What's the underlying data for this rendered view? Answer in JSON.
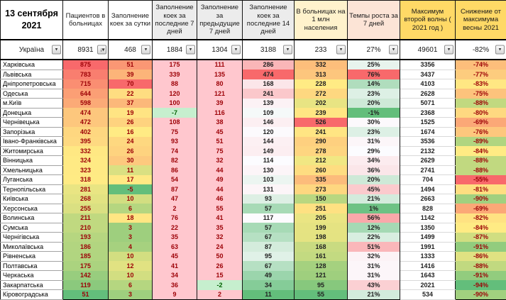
{
  "sheet": {
    "date_title": "13 сентября 2021",
    "totals_region": "Україна"
  },
  "icons": {
    "dropdown": "▾",
    "sort_descending": "↓"
  },
  "colors": {
    "scale_red": "#F8696B",
    "scale_yellow": "#FFEB84",
    "scale_green": "#63BE7B",
    "scale_white": "#FCFCFF",
    "pink_fill": "#FFC7CE",
    "pink_text": "#9C0006",
    "green_fill": "#C6EFCE",
    "green_text": "#006100",
    "header_gray": "#ECECEC",
    "header_light_yellow": "#FFF2CC",
    "header_peach": "#FCE4D6",
    "header_gold": "#FFD966"
  },
  "columns": [
    {
      "label": "Пациентов в больницах",
      "header_bg": "#FFFFFF",
      "scale": "ryg",
      "fmt": "int",
      "text": "#9C0006"
    },
    {
      "label": "Заполнение коек за сутки",
      "header_bg": "#FFFFFF",
      "scale": "ryg",
      "fmt": "int",
      "text": "#9C0006"
    },
    {
      "label": "Заполнение коек за последние 7 дней",
      "header_bg": "#ECECEC",
      "scale": "binary",
      "fmt": "int",
      "text": "#9C0006"
    },
    {
      "label": "Заполнение за предыдущие 7 дней",
      "header_bg": "#ECECEC",
      "scale": "binary",
      "fmt": "int",
      "text": "#9C0006"
    },
    {
      "label": "Заполнение коек за последние 14 дней",
      "header_bg": "#ECECEC",
      "scale": "rwg",
      "fmt": "int",
      "text": "#222222"
    },
    {
      "label": "В больницах на 1 млн населения",
      "header_bg": "#FFF2CC",
      "scale": "ryg",
      "fmt": "int",
      "text": "#222222"
    },
    {
      "label": "Темпы роста за 7 дней",
      "header_bg": "#FCE4D6",
      "scale": "rwg",
      "fmt": "pct",
      "text": "#222222"
    },
    {
      "label": "Максимум второй волны ( 2021 год )",
      "header_bg": "#FFD966",
      "scale": "none",
      "fmt": "int",
      "text": "#222222"
    },
    {
      "label": "Снижение от максимума весны 2021",
      "header_bg": "#FFD966",
      "scale": "ryg",
      "fmt": "pct",
      "text": "#9C0006"
    }
  ],
  "totals_values": [
    8931,
    468,
    1884,
    1304,
    3188,
    233,
    27,
    49601,
    -82
  ],
  "rows": [
    {
      "region": "Харківська",
      "values": [
        875,
        51,
        175,
        111,
        286,
        332,
        25,
        3356,
        -74
      ]
    },
    {
      "region": "Львівська",
      "values": [
        783,
        39,
        339,
        135,
        474,
        313,
        76,
        3437,
        -77
      ]
    },
    {
      "region": "Дніпропетровська",
      "values": [
        715,
        70,
        88,
        80,
        168,
        228,
        14,
        4103,
        -83
      ]
    },
    {
      "region": "Одеська",
      "values": [
        644,
        22,
        120,
        121,
        241,
        272,
        23,
        2628,
        -75
      ]
    },
    {
      "region": "м.Київ",
      "values": [
        598,
        37,
        100,
        39,
        139,
        202,
        20,
        5071,
        -88
      ]
    },
    {
      "region": "Донецька",
      "values": [
        474,
        19,
        -7,
        116,
        109,
        239,
        -1,
        2368,
        -80
      ]
    },
    {
      "region": "Чернівецька",
      "values": [
        472,
        26,
        108,
        38,
        146,
        526,
        30,
        1525,
        -69
      ]
    },
    {
      "region": "Запорізька",
      "values": [
        402,
        16,
        75,
        45,
        120,
        241,
        23,
        1674,
        -76
      ]
    },
    {
      "region": "Івано-Франківська",
      "values": [
        395,
        24,
        93,
        51,
        144,
        290,
        31,
        3536,
        -89
      ]
    },
    {
      "region": "Житомирська",
      "values": [
        332,
        26,
        74,
        75,
        149,
        278,
        29,
        2132,
        -84
      ]
    },
    {
      "region": "Вінницька",
      "values": [
        324,
        30,
        82,
        32,
        114,
        212,
        34,
        2629,
        -88
      ]
    },
    {
      "region": "Хмельницька",
      "values": [
        323,
        11,
        86,
        44,
        130,
        260,
        36,
        2741,
        -88
      ]
    },
    {
      "region": "Луганська",
      "values": [
        318,
        17,
        54,
        49,
        103,
        335,
        20,
        704,
        -55
      ]
    },
    {
      "region": "Тернопільська",
      "values": [
        281,
        -5,
        87,
        44,
        131,
        273,
        45,
        1494,
        -81
      ]
    },
    {
      "region": "Київська",
      "values": [
        268,
        10,
        47,
        46,
        93,
        150,
        21,
        2663,
        -90
      ]
    },
    {
      "region": "Херсонська",
      "values": [
        255,
        6,
        2,
        55,
        57,
        251,
        1,
        828,
        -69
      ]
    },
    {
      "region": "Волинська",
      "values": [
        211,
        18,
        76,
        41,
        117,
        205,
        56,
        1142,
        -82
      ]
    },
    {
      "region": "Сумська",
      "values": [
        210,
        3,
        22,
        35,
        57,
        199,
        12,
        1350,
        -84
      ]
    },
    {
      "region": "Чернігівська",
      "values": [
        193,
        3,
        35,
        32,
        67,
        198,
        22,
        1499,
        -87
      ]
    },
    {
      "region": "Миколаївська",
      "values": [
        186,
        4,
        63,
        24,
        87,
        168,
        51,
        1991,
        -91
      ]
    },
    {
      "region": "Рівненська",
      "values": [
        185,
        10,
        45,
        50,
        95,
        161,
        32,
        1333,
        -86
      ]
    },
    {
      "region": "Полтавська",
      "values": [
        175,
        12,
        41,
        26,
        67,
        128,
        31,
        1416,
        -88
      ]
    },
    {
      "region": "Черкаська",
      "values": [
        142,
        10,
        34,
        15,
        49,
        121,
        31,
        1643,
        -91
      ]
    },
    {
      "region": "Закарпатська",
      "values": [
        119,
        6,
        36,
        -2,
        34,
        95,
        43,
        2021,
        -94
      ]
    },
    {
      "region": "Кіровоградська",
      "values": [
        51,
        3,
        9,
        2,
        11,
        55,
        21,
        534,
        -90
      ]
    }
  ]
}
